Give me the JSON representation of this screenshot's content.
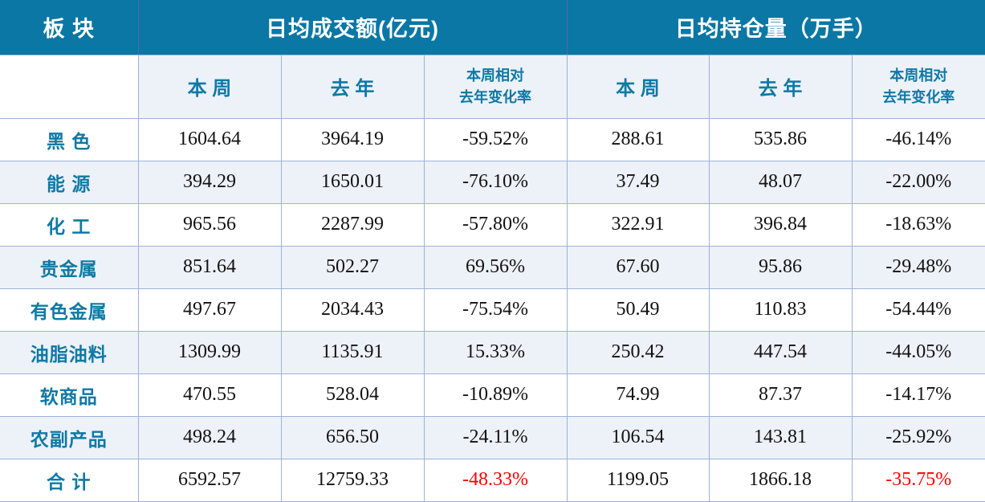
{
  "colors": {
    "header_bg": "#0b77a4",
    "header_text": "#ffffff",
    "accent_text": "#0e79a5",
    "stripe_bg": "#edf1f8",
    "border_light": "#9db2d9",
    "border_header_divider": "#5a63ae",
    "total_change_negative": "#ff0000",
    "value_text": "#111111"
  },
  "table": {
    "corner_header": "板 块",
    "groups": [
      {
        "label": "日均成交额(亿元)"
      },
      {
        "label": "日均持仓量（万手）"
      }
    ],
    "sub_headers": {
      "this_week": "本 周",
      "last_year": "去 年",
      "change_line1": "本周相对",
      "change_line2": "去年变化率"
    },
    "rows": [
      {
        "sector": "黑 色",
        "t_week": "1604.64",
        "t_last": "3964.19",
        "t_chg": "-59.52%",
        "o_week": "288.61",
        "o_last": "535.86",
        "o_chg": "-46.14%",
        "total": false
      },
      {
        "sector": "能 源",
        "t_week": "394.29",
        "t_last": "1650.01",
        "t_chg": "-76.10%",
        "o_week": "37.49",
        "o_last": "48.07",
        "o_chg": "-22.00%",
        "total": false
      },
      {
        "sector": "化 工",
        "t_week": "965.56",
        "t_last": "2287.99",
        "t_chg": "-57.80%",
        "o_week": "322.91",
        "o_last": "396.84",
        "o_chg": "-18.63%",
        "total": false
      },
      {
        "sector": "贵金属",
        "t_week": "851.64",
        "t_last": "502.27",
        "t_chg": "69.56%",
        "o_week": "67.60",
        "o_last": "95.86",
        "o_chg": "-29.48%",
        "total": false
      },
      {
        "sector": "有色金属",
        "t_week": "497.67",
        "t_last": "2034.43",
        "t_chg": "-75.54%",
        "o_week": "50.49",
        "o_last": "110.83",
        "o_chg": "-54.44%",
        "total": false
      },
      {
        "sector": "油脂油料",
        "t_week": "1309.99",
        "t_last": "1135.91",
        "t_chg": "15.33%",
        "o_week": "250.42",
        "o_last": "447.54",
        "o_chg": "-44.05%",
        "total": false
      },
      {
        "sector": "软商品",
        "t_week": "470.55",
        "t_last": "528.04",
        "t_chg": "-10.89%",
        "o_week": "74.99",
        "o_last": "87.37",
        "o_chg": "-14.17%",
        "total": false
      },
      {
        "sector": "农副产品",
        "t_week": "498.24",
        "t_last": "656.50",
        "t_chg": "-24.11%",
        "o_week": "106.54",
        "o_last": "143.81",
        "o_chg": "-25.92%",
        "total": false
      },
      {
        "sector": "合 计",
        "t_week": "6592.57",
        "t_last": "12759.33",
        "t_chg": "-48.33%",
        "o_week": "1199.05",
        "o_last": "1866.18",
        "o_chg": "-35.75%",
        "total": true
      }
    ]
  },
  "chart_data": {
    "type": "table",
    "title": "",
    "column_groups": [
      "板 块",
      "日均成交额(亿元)",
      "日均持仓量（万手）"
    ],
    "columns": [
      "板块",
      "日均成交额 本周",
      "日均成交额 去年",
      "日均成交额 本周相对去年变化率",
      "日均持仓量 本周",
      "日均持仓量 去年",
      "日均持仓量 本周相对去年变化率"
    ],
    "rows": [
      [
        "黑色",
        1604.64,
        3964.19,
        "-59.52%",
        288.61,
        535.86,
        "-46.14%"
      ],
      [
        "能源",
        394.29,
        1650.01,
        "-76.10%",
        37.49,
        48.07,
        "-22.00%"
      ],
      [
        "化工",
        965.56,
        2287.99,
        "-57.80%",
        322.91,
        396.84,
        "-18.63%"
      ],
      [
        "贵金属",
        851.64,
        502.27,
        "69.56%",
        67.6,
        95.86,
        "-29.48%"
      ],
      [
        "有色金属",
        497.67,
        2034.43,
        "-75.54%",
        50.49,
        110.83,
        "-54.44%"
      ],
      [
        "油脂油料",
        1309.99,
        1135.91,
        "15.33%",
        250.42,
        447.54,
        "-44.05%"
      ],
      [
        "软商品",
        470.55,
        528.04,
        "-10.89%",
        74.99,
        87.37,
        "-14.17%"
      ],
      [
        "农副产品",
        498.24,
        656.5,
        "-24.11%",
        106.54,
        143.81,
        "-25.92%"
      ],
      [
        "合计",
        6592.57,
        12759.33,
        "-48.33%",
        1199.05,
        1866.18,
        "-35.75%"
      ]
    ]
  }
}
